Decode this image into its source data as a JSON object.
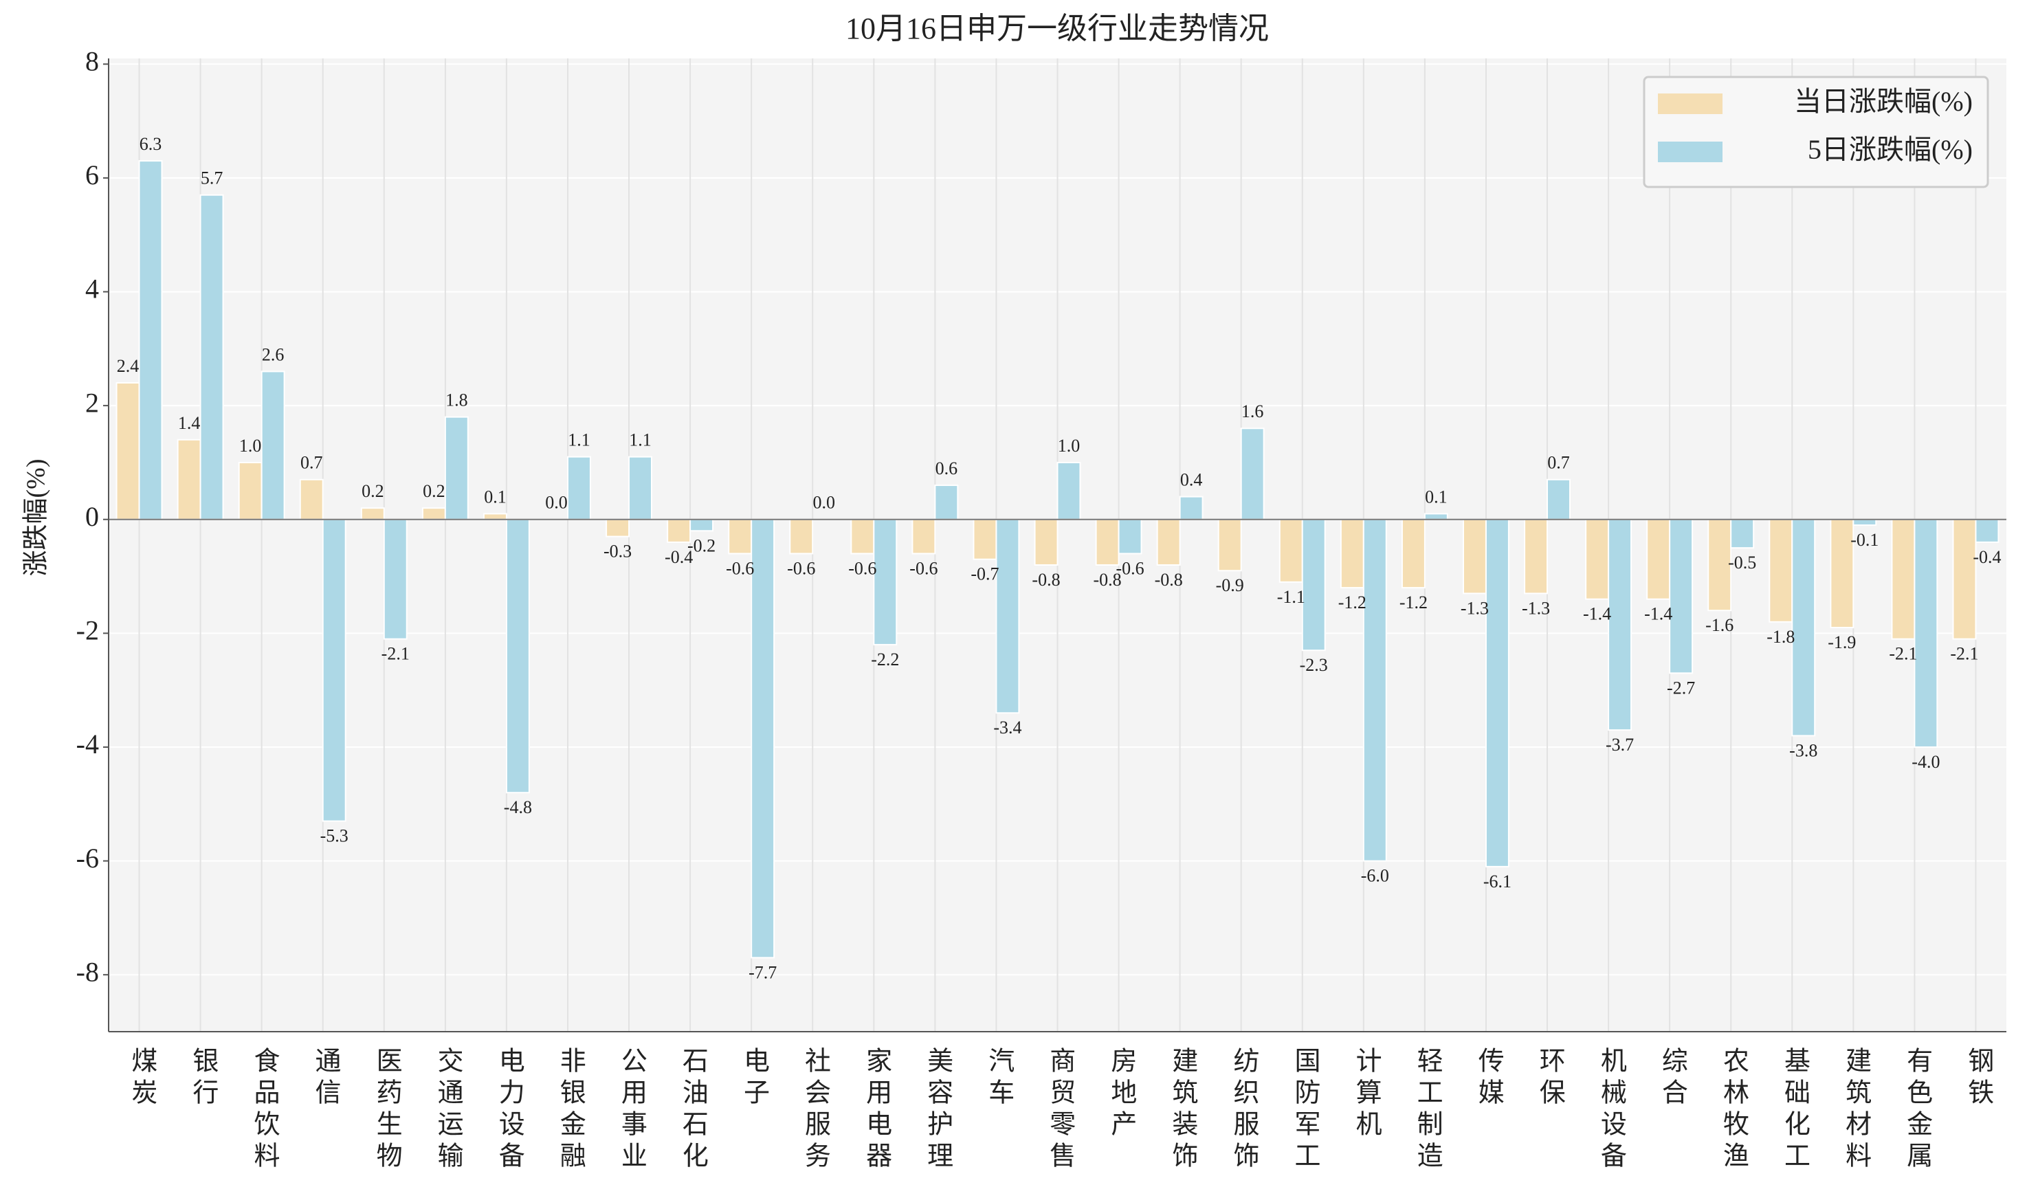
{
  "chart_data": {
    "type": "bar",
    "title": "10月16日申万一级行业走势情况",
    "y_label": "涨跌幅(%)",
    "categories": [
      "煤炭",
      "银行",
      "食品饮料",
      "通信",
      "医药生物",
      "交通运输",
      "电力设备",
      "非银金融",
      "公用事业",
      "石油石化",
      "电子",
      "社会服务",
      "家用电器",
      "美容护理",
      "汽车",
      "商贸零售",
      "房地产",
      "建筑装饰",
      "纺织服饰",
      "国防军工",
      "计算机",
      "轻工制造",
      "传媒",
      "环保",
      "机械设备",
      "综合",
      "农林牧渔",
      "基础化工",
      "建筑材料",
      "有色金属",
      "钢铁"
    ],
    "series": [
      {
        "name": "当日涨跌幅(%)",
        "color": "#f5deb3",
        "values": [
          2.4,
          1.4,
          1.0,
          0.7,
          0.2,
          0.2,
          0.1,
          0.0,
          -0.3,
          -0.4,
          -0.6,
          -0.6,
          -0.6,
          -0.6,
          -0.7,
          -0.8,
          -0.8,
          -0.8,
          -0.9,
          -1.1,
          -1.2,
          -1.2,
          -1.3,
          -1.3,
          -1.4,
          -1.4,
          -1.6,
          -1.8,
          -1.9,
          -2.1,
          -2.1
        ],
        "value_labels": [
          "2.4",
          "1.4",
          "1.0",
          "0.7",
          "0.2",
          "0.2",
          "0.1",
          "0.0",
          "-0.3",
          "-0.4",
          "-0.6",
          "-0.6",
          "-0.6",
          "-0.6",
          "-0.7",
          "-0.8",
          "-0.8",
          "-0.8",
          "-0.9",
          "-1.1",
          "-1.2",
          "-1.2",
          "-1.3",
          "-1.3",
          "-1.4",
          "-1.4",
          "-1.6",
          "-1.8",
          "-1.9",
          "-2.1",
          "-2.1"
        ]
      },
      {
        "name": "5日涨跌幅(%)",
        "color": "#add8e6",
        "values": [
          6.3,
          5.7,
          2.6,
          -5.3,
          -2.1,
          1.8,
          -4.8,
          1.1,
          1.1,
          -0.2,
          -7.7,
          0.0,
          -2.2,
          0.6,
          -3.4,
          1.0,
          -0.6,
          0.4,
          1.6,
          -2.3,
          -6.0,
          0.1,
          -6.1,
          0.7,
          -3.7,
          -2.7,
          -0.5,
          -3.8,
          -0.1,
          -4.0,
          -0.4
        ],
        "value_labels": [
          "6.3",
          "5.7",
          "2.6",
          "-5.3",
          "-2.1",
          "1.8",
          "-4.8",
          "1.1",
          "1.1",
          "-0.2",
          "-7.7",
          "0.0",
          "-2.2",
          "0.6",
          "-3.4",
          "1.0",
          "-0.6",
          "0.4",
          "1.6",
          "-2.3",
          "-6.0",
          "0.1",
          "-6.1",
          "0.7",
          "-3.7",
          "-2.7",
          "-0.5",
          "-3.8",
          "-0.1",
          "-4.0",
          "-0.4"
        ]
      }
    ],
    "ylim": [
      -9,
      8.1
    ],
    "yticks": [
      -8,
      -6,
      -4,
      -2,
      0,
      2,
      4,
      6,
      8
    ],
    "grid": true,
    "legend": "upper right"
  }
}
